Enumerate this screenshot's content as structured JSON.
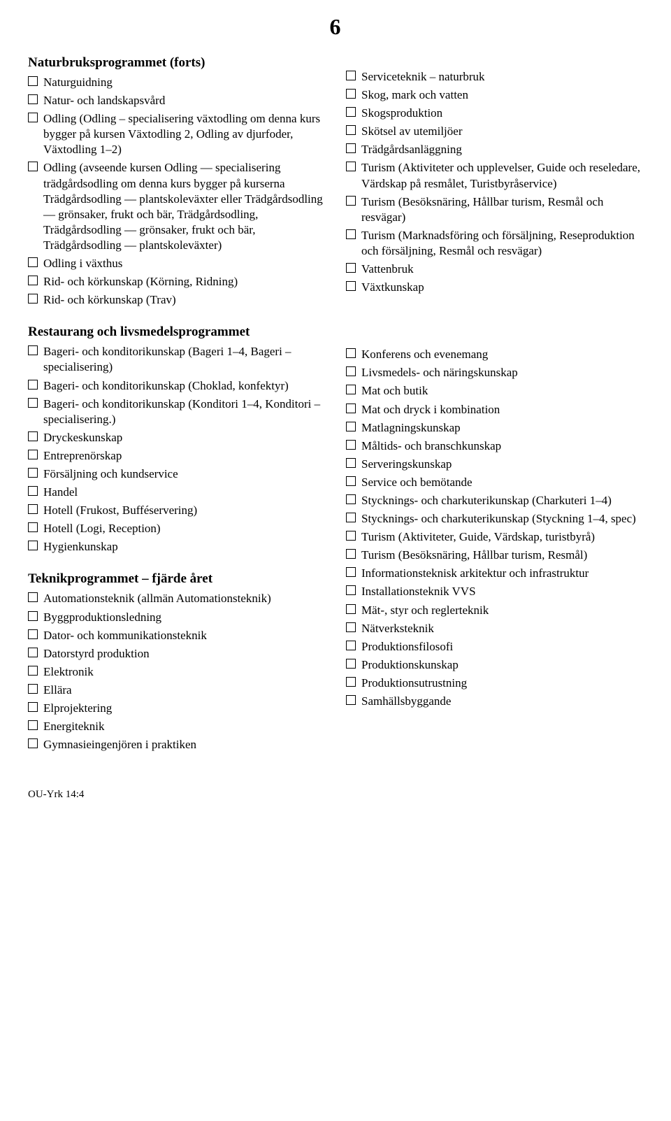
{
  "page_number": "6",
  "left": {
    "h1": "Naturbruksprogrammet (forts)",
    "items1": [
      "Naturguidning",
      "Natur- och landskapsvård",
      "Odling (Odling – specialisering växtodling om denna kurs bygger på kursen Växtodling 2, Odling av djurfoder, Växtodling 1–2)",
      "Odling (avseende kursen Odling — specialisering trädgårdsodling om denna kurs bygger på kurserna Trädgårdsodling — plantskoleväxter eller Trädgårdsodling — grönsaker, frukt och bär, Trädgårdsodling, Trädgårdsodling — grönsaker, frukt och bär, Trädgårdsodling — plantskoleväxter)",
      "Odling i växthus",
      "Rid- och körkunskap (Körning, Ridning)",
      "Rid- och körkunskap (Trav)"
    ],
    "h2": "Restaurang och livsmedelsprogrammet",
    "items2": [
      "Bageri- och konditorikunskap (Bageri 1–4, Bageri – specialisering)",
      "Bageri- och konditorikunskap (Choklad, konfektyr)",
      "Bageri- och konditorikunskap (Konditori 1–4, Konditori – specialisering.)",
      "Dryckeskunskap",
      "Entreprenörskap",
      "Försäljning och kundservice",
      "Handel",
      "Hotell (Frukost, Bufféservering)",
      "Hotell (Logi, Reception)",
      "Hygienkunskap"
    ],
    "h3": "Teknikprogrammet – fjärde året",
    "items3": [
      "Automationsteknik (allmän Automationsteknik)",
      "Byggproduktionsledning",
      "Dator- och kommunikationsteknik",
      "Datorstyrd produktion",
      "Elektronik",
      "Ellära",
      "Elprojektering",
      "Energiteknik",
      "Gymnasieingenjören i praktiken"
    ]
  },
  "right": {
    "items1": [
      "Serviceteknik – naturbruk",
      "Skog, mark och vatten",
      "Skogsproduktion",
      "Skötsel av utemiljöer",
      "Trädgårdsanläggning",
      "Turism (Aktiviteter och upplevelser, Guide och reseledare, Värdskap på resmålet, Turistbyråservice)",
      "Turism (Besöksnäring, Hållbar turism, Resmål och resvägar)",
      "Turism (Marknadsföring och försäljning, Reseproduktion och försäljning, Resmål och resvägar)",
      "Vattenbruk",
      "Växtkunskap"
    ],
    "items2": [
      "Konferens och evenemang",
      "Livsmedels- och näringskunskap",
      "Mat och butik",
      "Mat och dryck i kombination",
      "Matlagningskunskap",
      "Måltids- och branschkunskap",
      "Serveringskunskap",
      "Service och bemötande",
      "Stycknings- och charkuterikunskap (Charkuteri 1–4)",
      "Stycknings- och charkuterikunskap (Styckning 1–4, spec)",
      "Turism (Aktiviteter, Guide, Värdskap, turistbyrå)",
      "Turism (Besöksnäring, Hållbar turism, Resmål)",
      "Informationsteknisk arkitektur och infrastruktur",
      "Installationsteknik VVS",
      "Mät-, styr och reglerteknik",
      "Nätverksteknik",
      "Produktionsfilosofi",
      "Produktionskunskap",
      "Produktionsutrustning",
      "Samhällsbyggande"
    ]
  },
  "footer": "OU-Yrk 14:4"
}
